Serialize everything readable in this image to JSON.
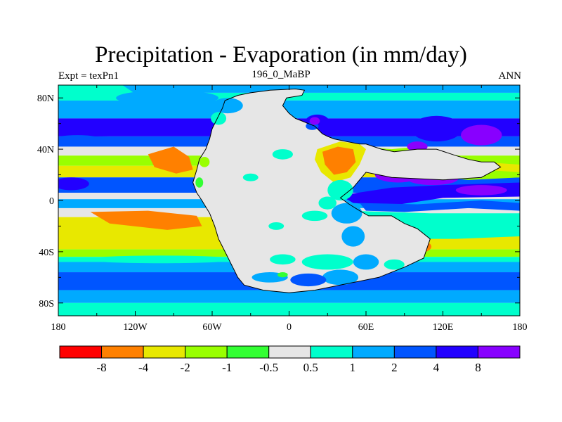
{
  "title": "Precipitation - Evaporation (in mm/day)",
  "subtitle_left": "Expt = texPn1",
  "subtitle_center": "196_0_MaBP",
  "subtitle_right": "ANN",
  "map": {
    "type": "filled-contour-map",
    "variable": "Precipitation - Evaporation",
    "units": "mm/day",
    "projection": "cylindrical-equidistant",
    "lon_range": [
      -180,
      180
    ],
    "lat_range": [
      -90,
      90
    ],
    "lon_ticks": [
      {
        "value": -180,
        "label": "180"
      },
      {
        "value": -120,
        "label": "120W"
      },
      {
        "value": -60,
        "label": "60W"
      },
      {
        "value": 0,
        "label": "0"
      },
      {
        "value": 60,
        "label": "60E"
      },
      {
        "value": 120,
        "label": "120E"
      },
      {
        "value": 180,
        "label": "180"
      }
    ],
    "lat_ticks": [
      {
        "value": 80,
        "label": "80N"
      },
      {
        "value": 40,
        "label": "40N"
      },
      {
        "value": 0,
        "label": "0"
      },
      {
        "value": -40,
        "label": "40S"
      },
      {
        "value": -80,
        "label": "80S"
      }
    ],
    "coastline": "Pangea supercontinent (Early Jurassic paleogeography)"
  },
  "colorbar": {
    "colors": [
      "#ff0000",
      "#ff8000",
      "#e8e800",
      "#99ff00",
      "#33ff33",
      "#e6e6e6",
      "#00ffcc",
      "#00aaff",
      "#0055ff",
      "#2200ff",
      "#8800ff"
    ],
    "labels": [
      "-8",
      "-4",
      "-2",
      "-1",
      "-0.5",
      "0.5",
      "1",
      "2",
      "4",
      "8"
    ]
  }
}
